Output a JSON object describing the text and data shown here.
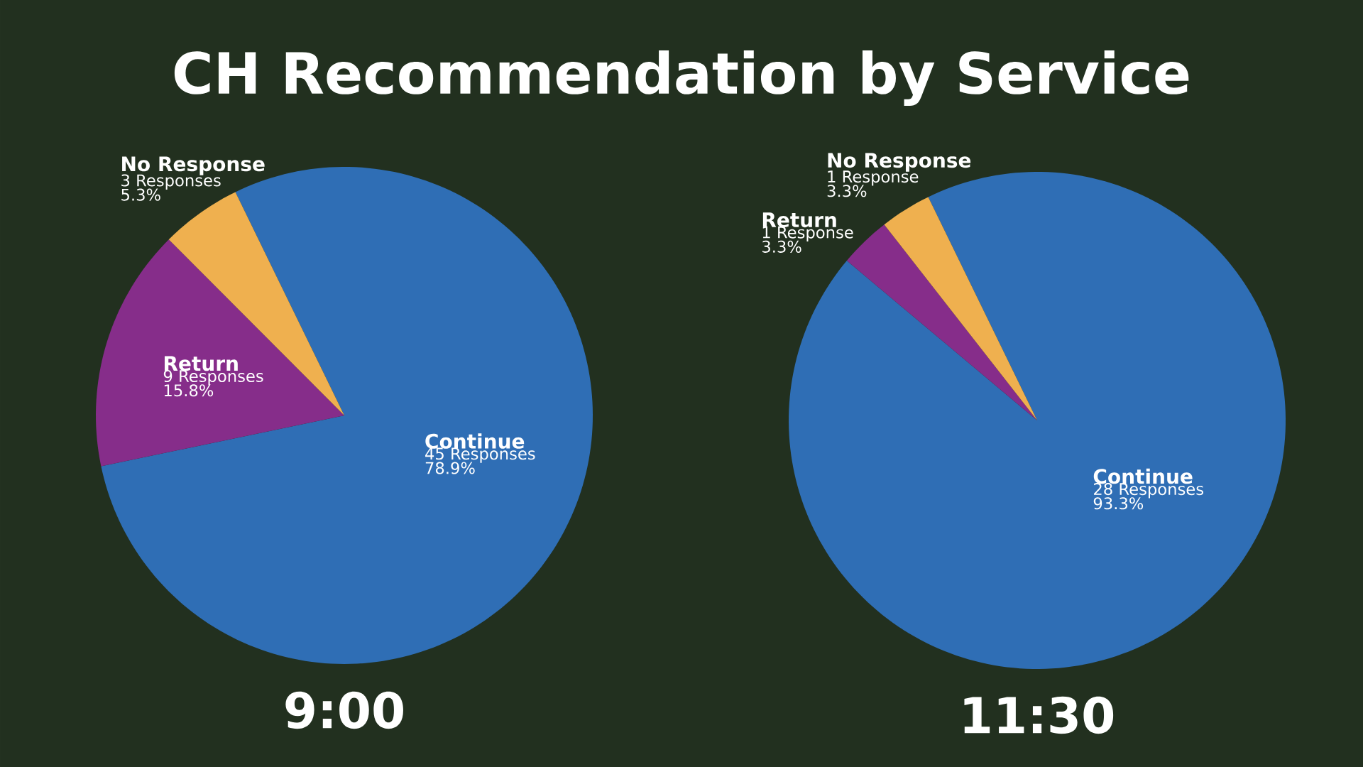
{
  "chart_data": [
    {
      "type": "pie",
      "title": "CH Recommendation by Service",
      "subtitle": "9:00",
      "categories": [
        "Continue",
        "Return",
        "No Response"
      ],
      "values": [
        45,
        9,
        3
      ],
      "colors": [
        "#2f6eb5",
        "#862d8a",
        "#efb04f"
      ],
      "value_labels": [
        "45 Responses",
        "9 Responses",
        "3 Responses"
      ],
      "annotations": [
        {
          "text": "78.9%",
          "x": "Continue"
        },
        {
          "text": "15.8%",
          "x": "Return"
        },
        {
          "text": "5.3%",
          "x": "No Response"
        }
      ]
    },
    {
      "type": "pie",
      "subtitle": "11:30",
      "categories": [
        "Continue",
        "Return",
        "No Response"
      ],
      "values": [
        28,
        1,
        1
      ],
      "colors": [
        "#2f6eb5",
        "#862d8a",
        "#efb04f"
      ],
      "value_labels": [
        "28 Responses",
        "1 Response",
        "1 Response"
      ],
      "annotations": [
        {
          "text": "93.3%",
          "x": "Continue"
        },
        {
          "text": "3.3%",
          "x": "Return"
        },
        {
          "text": "3.3%",
          "x": "No Response"
        }
      ]
    }
  ]
}
